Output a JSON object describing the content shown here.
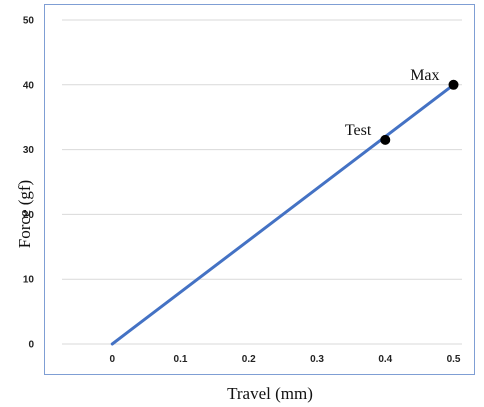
{
  "chart_data": {
    "type": "line",
    "title": "",
    "xlabel": "Travel (mm)",
    "ylabel": "Force (gf)",
    "xlim": [
      -0.1,
      0.53
    ],
    "ylim": [
      0,
      50
    ],
    "x_ticks": [
      "0",
      "0.1",
      "0.2",
      "0.3",
      "0.4",
      "0.5"
    ],
    "y_ticks": [
      "0",
      "10",
      "20",
      "30",
      "40",
      "50"
    ],
    "grid": "horizontal",
    "series": [
      {
        "x": [
          0,
          0.5
        ],
        "y": [
          0,
          40
        ],
        "color": "#4472C4"
      }
    ],
    "points": [
      {
        "label": "Test",
        "x": 0.4,
        "y": 31.5
      },
      {
        "label": "Max",
        "x": 0.5,
        "y": 40
      }
    ]
  }
}
